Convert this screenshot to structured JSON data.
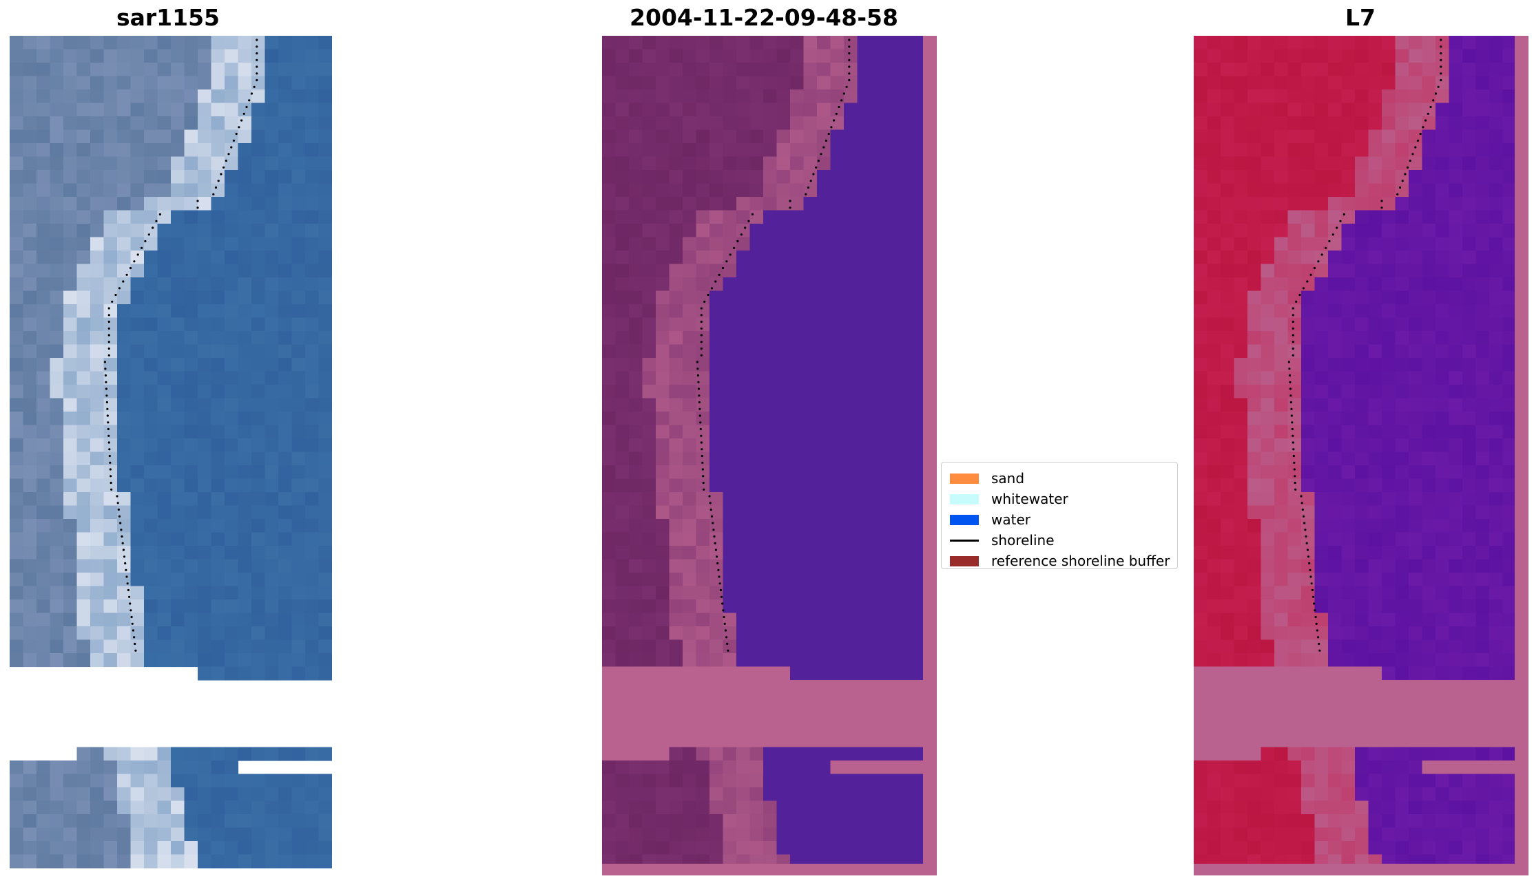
{
  "panels": [
    {
      "title": "sar1155",
      "kind": "rgb"
    },
    {
      "title": "2004-11-22-09-48-58",
      "kind": "classified"
    },
    {
      "title": "L7",
      "kind": "mndwi"
    }
  ],
  "legend": {
    "items": [
      {
        "label": "sand",
        "type": "patch",
        "color": "#ff8c3f"
      },
      {
        "label": "whitewater",
        "type": "patch",
        "color": "#c8fcfc"
      },
      {
        "label": "water",
        "type": "patch",
        "color": "#0055f0"
      },
      {
        "label": "shoreline",
        "type": "line",
        "color": "#000000"
      },
      {
        "label": "reference shoreline buffer",
        "type": "patch",
        "color": "#9a2b2b"
      }
    ]
  },
  "colors": {
    "rgb_water": "#3a6ea5",
    "rgb_whitewater": "#d8e0ee",
    "classified_land": "#7a2f6e",
    "classified_water": "#53229a",
    "buffer_overlay": "#b9628f",
    "index_land": "#c41e4e",
    "index_water": "#6a1aa6",
    "shoreline": "#000000"
  }
}
